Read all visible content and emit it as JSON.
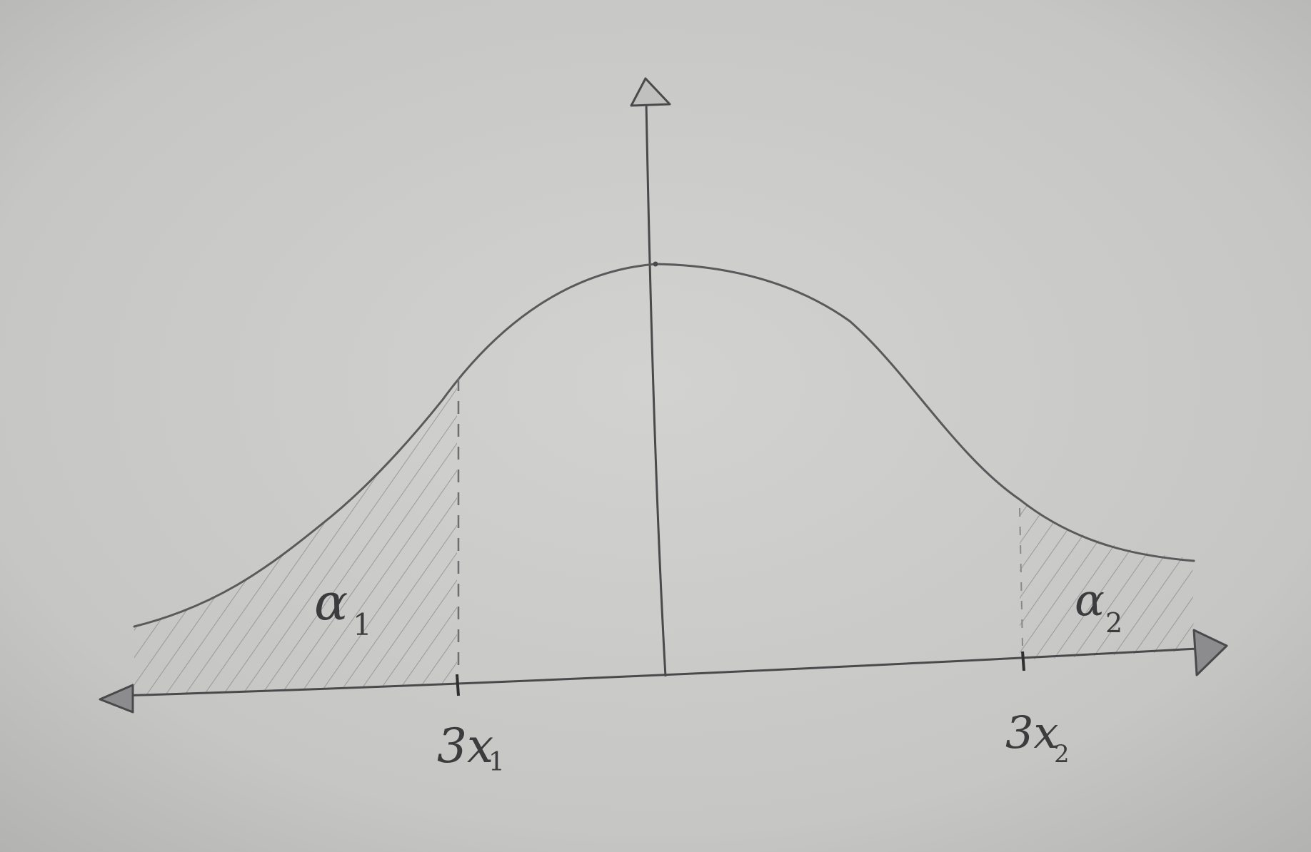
{
  "labels": {
    "tail_left_area": "α",
    "tail_left_area_sub": "1",
    "tail_right_area": "α",
    "tail_right_area_sub": "2",
    "critical_left": "3x",
    "critical_left_sub": "1",
    "critical_right": "3x",
    "critical_right_sub": "2"
  },
  "colors": {
    "paper": "#c9c9c7",
    "ink": "#4a4a4c",
    "hatch": "#8e8e90"
  }
}
